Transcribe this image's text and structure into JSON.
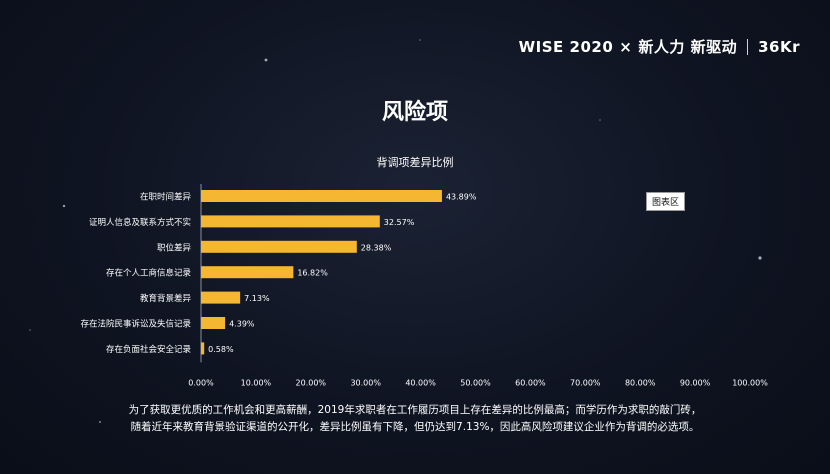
{
  "brand": {
    "title": "WISE 2020",
    "cross": "×",
    "subtitle": "新人力 新驱动",
    "logo": "36Kr"
  },
  "heading": "风险项",
  "legend_label": "图表区",
  "caption": {
    "line1": "为了获取更优质的工作机会和更高薪酬，2019年求职者在工作履历项目上存在差异的比例最高；而学历作为求职的敲门砖，",
    "line2": "随着近年来教育背景验证渠道的公开化，差异比例虽有下降，但仍达到7.13%，因此高风险项建议企业作为背调的必选项。"
  },
  "colors": {
    "bar": "#f5b731",
    "text": "#ffffff",
    "axis": "#8a8f9c"
  },
  "chart_data": {
    "type": "bar",
    "orientation": "horizontal",
    "title": "背调项差异比例",
    "categories": [
      "在职时间差异",
      "证明人信息及联系方式不实",
      "职位差异",
      "存在个人工商信息记录",
      "教育背景差异",
      "存在法院民事诉讼及失信记录",
      "存在负面社会安全记录"
    ],
    "values": [
      43.89,
      32.57,
      28.38,
      16.82,
      7.13,
      4.39,
      0.58
    ],
    "value_labels": [
      "43.89%",
      "32.57%",
      "28.38%",
      "16.82%",
      "7.13%",
      "4.39%",
      "0.58%"
    ],
    "xlim": [
      0,
      100
    ],
    "x_ticks": [
      "0.00%",
      "10.00%",
      "20.00%",
      "30.00%",
      "40.00%",
      "50.00%",
      "60.00%",
      "70.00%",
      "80.00%",
      "90.00%",
      "100.00%"
    ],
    "grid": false
  }
}
